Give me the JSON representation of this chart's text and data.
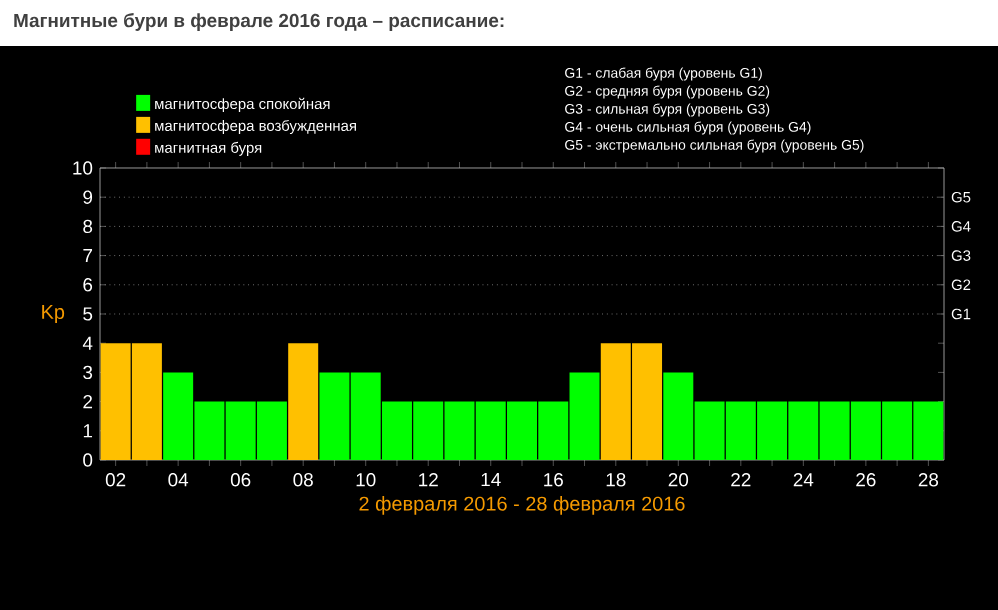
{
  "chart_data": {
    "type": "bar",
    "title": "Магнитные бури в феврале 2016 года – расписание:",
    "xlabel": "2 февраля 2016 - 28 февраля 2016",
    "ylabel": "Kp",
    "categories": [
      "02",
      null,
      "04",
      null,
      "06",
      null,
      "08",
      null,
      "10",
      null,
      "12",
      null,
      "14",
      null,
      "16",
      null,
      "18",
      null,
      "20",
      null,
      "22",
      null,
      "24",
      null,
      "26",
      null,
      "28"
    ],
    "series": [
      {
        "name": "магнитосфера спокойная",
        "color": "#00ff00",
        "values": [
          null,
          null,
          3,
          2,
          2,
          2,
          null,
          3,
          3,
          2,
          2,
          2,
          2,
          2,
          2,
          3,
          null,
          null,
          3,
          2,
          2,
          2,
          2,
          2,
          2,
          2,
          2
        ]
      },
      {
        "name": "магнитосфера возбужденная",
        "color": "#ffc000",
        "values": [
          4,
          4,
          null,
          null,
          null,
          null,
          4,
          null,
          null,
          null,
          null,
          null,
          null,
          null,
          null,
          null,
          4,
          4,
          null,
          null,
          null,
          null,
          null,
          null,
          null,
          null,
          null
        ]
      },
      {
        "name": "магнитная буря",
        "color": "#ff0000",
        "values": [
          null,
          null,
          null,
          null,
          null,
          null,
          null,
          null,
          null,
          null,
          null,
          null,
          null,
          null,
          null,
          null,
          null,
          null,
          null,
          null,
          null,
          null,
          null,
          null,
          null,
          null,
          null
        ]
      }
    ],
    "ylim": [
      0,
      10
    ],
    "yticks": [
      0,
      1,
      2,
      3,
      4,
      5,
      6,
      7,
      8,
      9,
      10
    ],
    "ref_lines": [
      {
        "axis": "y",
        "value": 5,
        "label": "G1",
        "color": "#aaaaaa",
        "line_style": "dotted"
      },
      {
        "axis": "y",
        "value": 6,
        "label": "G2",
        "color": "#aaaaaa",
        "line_style": "dotted"
      },
      {
        "axis": "y",
        "value": 7,
        "label": "G3",
        "color": "#aaaaaa",
        "line_style": "dotted"
      },
      {
        "axis": "y",
        "value": 8,
        "label": "G4",
        "color": "#aaaaaa",
        "line_style": "dotted"
      },
      {
        "axis": "y",
        "value": 9,
        "label": "G5",
        "color": "#aaaaaa",
        "line_style": "dotted"
      }
    ],
    "legend": "top left",
    "annotations": [
      "G1 - слабая буря (уровень G1)",
      "G2 - средняя буря (уровень G2)",
      "G3 - сильная буря (уровень G3)",
      "G4 - очень сильная буря (уровень G4)",
      "G5 - экстремально сильная буря (уровень G5)"
    ]
  }
}
